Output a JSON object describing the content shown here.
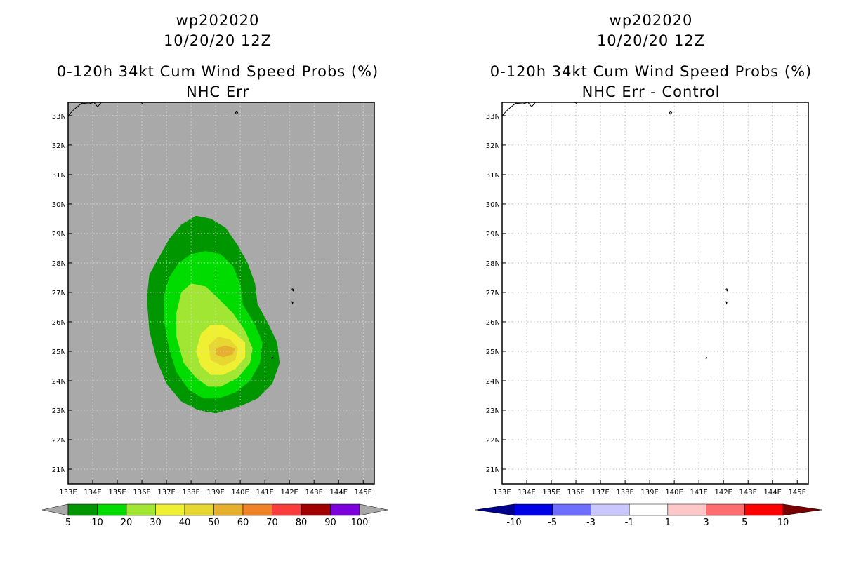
{
  "chart_data": [
    {
      "type": "heatmap",
      "panel": "left",
      "storm_id": "wp202020",
      "datetime": "10/20/20 12Z",
      "title": "0-120h 34kt Cum Wind Speed Probs (%)",
      "subtitle": "NHC Err",
      "x_ticks": [
        "133E",
        "134E",
        "135E",
        "136E",
        "137E",
        "138E",
        "139E",
        "140E",
        "141E",
        "142E",
        "143E",
        "144E",
        "145E"
      ],
      "y_ticks": [
        "21N",
        "22N",
        "23N",
        "24N",
        "25N",
        "26N",
        "27N",
        "28N",
        "29N",
        "30N",
        "31N",
        "32N",
        "33N"
      ],
      "background_color": "#a9a9a9",
      "grid": true,
      "colorbar": {
        "labels": [
          "5",
          "10",
          "20",
          "30",
          "40",
          "50",
          "60",
          "70",
          "80",
          "90",
          "100"
        ],
        "colors": [
          "#009600",
          "#00dc00",
          "#a0e632",
          "#f0f032",
          "#e6d732",
          "#e6af2d",
          "#f08228",
          "#fa3c3c",
          "#a00000",
          "#7d00dc"
        ],
        "under_color": "#a9a9a9",
        "over_color": "#a9a9a9"
      },
      "contours": [
        {
          "level": 5,
          "color": "#009600",
          "points": [
            [
              139,
              22.9
            ],
            [
              139.9,
              23.1
            ],
            [
              140.7,
              23.4
            ],
            [
              141.3,
              23.9
            ],
            [
              141.6,
              24.6
            ],
            [
              141.5,
              25.3
            ],
            [
              141.1,
              26.0
            ],
            [
              140.7,
              26.6
            ],
            [
              140.6,
              27.3
            ],
            [
              140.3,
              28.0
            ],
            [
              139.9,
              28.6
            ],
            [
              139.4,
              29.2
            ],
            [
              138.8,
              29.5
            ],
            [
              138.2,
              29.6
            ],
            [
              137.6,
              29.3
            ],
            [
              137.1,
              28.8
            ],
            [
              136.7,
              28.2
            ],
            [
              136.3,
              27.6
            ],
            [
              136.2,
              26.8
            ],
            [
              136.3,
              25.7
            ],
            [
              136.6,
              24.7
            ],
            [
              137.0,
              23.9
            ],
            [
              137.6,
              23.3
            ],
            [
              138.3,
              23.0
            ]
          ]
        },
        {
          "level": 10,
          "color": "#00dc00",
          "points": [
            [
              139.1,
              23.4
            ],
            [
              139.8,
              23.6
            ],
            [
              140.4,
              24.0
            ],
            [
              140.8,
              24.6
            ],
            [
              140.9,
              25.3
            ],
            [
              140.6,
              25.9
            ],
            [
              140.1,
              26.6
            ],
            [
              140.0,
              27.3
            ],
            [
              139.7,
              27.9
            ],
            [
              139.2,
              28.3
            ],
            [
              138.6,
              28.4
            ],
            [
              138.0,
              28.3
            ],
            [
              137.5,
              28.0
            ],
            [
              137.1,
              27.5
            ],
            [
              136.9,
              26.9
            ],
            [
              136.9,
              26.0
            ],
            [
              137.1,
              25.1
            ],
            [
              137.4,
              24.3
            ],
            [
              137.9,
              23.7
            ],
            [
              138.5,
              23.4
            ]
          ]
        },
        {
          "level": 20,
          "color": "#a0e632",
          "points": [
            [
              139.2,
              23.8
            ],
            [
              139.9,
              24.1
            ],
            [
              140.4,
              24.6
            ],
            [
              140.5,
              25.1
            ],
            [
              140.2,
              25.7
            ],
            [
              139.7,
              26.3
            ],
            [
              139.1,
              26.8
            ],
            [
              138.6,
              27.2
            ],
            [
              138.0,
              27.3
            ],
            [
              137.6,
              27.0
            ],
            [
              137.4,
              26.3
            ],
            [
              137.4,
              25.5
            ],
            [
              137.7,
              24.6
            ],
            [
              138.2,
              24.1
            ],
            [
              138.7,
              23.8
            ]
          ]
        },
        {
          "level": 30,
          "color": "#f0f032",
          "points": [
            [
              139.3,
              24.2
            ],
            [
              139.8,
              24.4
            ],
            [
              140.2,
              24.8
            ],
            [
              140.2,
              25.3
            ],
            [
              139.8,
              25.6
            ],
            [
              139.3,
              25.9
            ],
            [
              138.8,
              25.9
            ],
            [
              138.4,
              25.6
            ],
            [
              138.2,
              25.0
            ],
            [
              138.4,
              24.5
            ],
            [
              138.8,
              24.2
            ]
          ]
        },
        {
          "level": 40,
          "color": "#e6d732",
          "points": [
            [
              139.3,
              24.5
            ],
            [
              139.8,
              24.7
            ],
            [
              139.9,
              25.1
            ],
            [
              139.6,
              25.4
            ],
            [
              139.1,
              25.5
            ],
            [
              138.7,
              25.2
            ],
            [
              138.8,
              24.7
            ]
          ]
        },
        {
          "level": 50,
          "color": "#e6af2d",
          "points": [
            [
              139.3,
              24.8
            ],
            [
              139.7,
              24.9
            ],
            [
              139.8,
              25.1
            ],
            [
              139.4,
              25.2
            ],
            [
              139.0,
              25.1
            ],
            [
              139.0,
              24.9
            ]
          ]
        }
      ]
    },
    {
      "type": "heatmap",
      "panel": "right",
      "storm_id": "wp202020",
      "datetime": "10/20/20 12Z",
      "title": "0-120h 34kt Cum Wind Speed Probs (%)",
      "subtitle": "NHC Err - Control",
      "x_ticks": [
        "133E",
        "134E",
        "135E",
        "136E",
        "137E",
        "138E",
        "139E",
        "140E",
        "141E",
        "142E",
        "143E",
        "144E",
        "145E"
      ],
      "y_ticks": [
        "21N",
        "22N",
        "23N",
        "24N",
        "25N",
        "26N",
        "27N",
        "28N",
        "29N",
        "30N",
        "31N",
        "32N",
        "33N"
      ],
      "background_color": "#ffffff",
      "grid": true,
      "colorbar": {
        "labels": [
          "-10",
          "-5",
          "-3",
          "-1",
          "1",
          "3",
          "5",
          "10"
        ],
        "colors": [
          "#0000e6",
          "#6e6eff",
          "#c8c8ff",
          "#ffffff",
          "#ffc8c8",
          "#ff6e6e",
          "#ff0000"
        ],
        "under_color": "#00008c",
        "over_color": "#780000"
      },
      "contours": []
    }
  ]
}
